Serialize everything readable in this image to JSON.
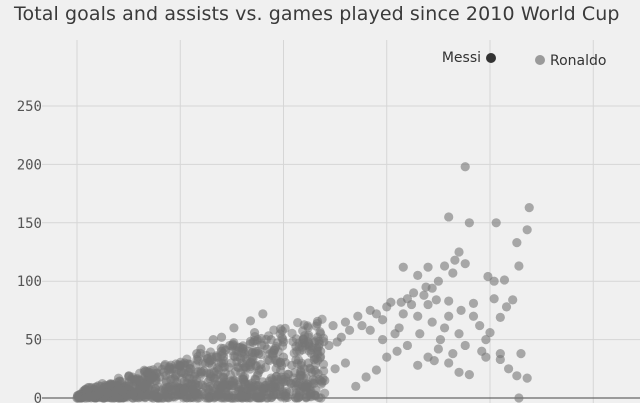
{
  "title": "Total goals and assists vs. games played since 2010 World Cup",
  "colors": {
    "background": "#f0f0f0",
    "grid": "#d6d6d6",
    "axis": "#666666",
    "others": "#777777",
    "messi": "#333333",
    "ronaldo": "#9a9a9a"
  },
  "chart_data": {
    "type": "scatter",
    "title": "Total goals and assists vs. games played since 2010 World Cup",
    "xlabel": "",
    "ylabel": "",
    "xlim": [
      0,
      275
    ],
    "ylim": [
      0,
      260
    ],
    "y_ticks": [
      0,
      50,
      100,
      150,
      200,
      250
    ],
    "x_gridlines": [
      0,
      50,
      100,
      150,
      200,
      250
    ],
    "grid": true,
    "legend": [
      "Messi",
      "Ronaldo"
    ],
    "highlight": [
      {
        "name": "Messi",
        "x": 200,
        "y": 288
      },
      {
        "name": "Ronaldo",
        "x": 225,
        "y": 287
      }
    ],
    "series": [
      {
        "name": "Ronaldo",
        "points": [
          [
            188,
            198
          ],
          [
            203,
            150
          ],
          [
            219,
            163
          ],
          [
            218,
            144
          ],
          [
            213,
            133
          ],
          [
            214,
            113
          ],
          [
            202,
            100
          ],
          [
            207,
            101
          ],
          [
            199,
            104
          ],
          [
            211,
            84
          ],
          [
            208,
            78
          ],
          [
            202,
            85
          ],
          [
            205,
            69
          ],
          [
            190,
            150
          ],
          [
            180,
            155
          ],
          [
            185,
            125
          ],
          [
            183,
            118
          ],
          [
            188,
            115
          ],
          [
            178,
            113
          ],
          [
            182,
            107
          ],
          [
            170,
            112
          ],
          [
            158,
            112
          ],
          [
            165,
            105
          ],
          [
            175,
            100
          ],
          [
            172,
            94
          ],
          [
            168,
            88
          ],
          [
            160,
            85
          ],
          [
            152,
            82
          ],
          [
            162,
            80
          ],
          [
            192,
            70
          ],
          [
            195,
            62
          ],
          [
            200,
            56
          ],
          [
            198,
            50
          ],
          [
            196,
            40
          ],
          [
            205,
            38
          ],
          [
            215,
            38
          ],
          [
            198,
            35
          ],
          [
            205,
            33
          ],
          [
            213,
            19
          ],
          [
            218,
            17
          ],
          [
            214,
            0
          ],
          [
            209,
            25
          ],
          [
            190,
            20
          ],
          [
            185,
            22
          ],
          [
            180,
            30
          ],
          [
            170,
            35
          ],
          [
            175,
            42
          ],
          [
            160,
            45
          ],
          [
            155,
            40
          ],
          [
            150,
            35
          ],
          [
            165,
            28
          ],
          [
            145,
            24
          ],
          [
            140,
            18
          ],
          [
            135,
            10
          ],
          [
            120,
            15
          ],
          [
            125,
            25
          ],
          [
            130,
            30
          ],
          [
            148,
            50
          ],
          [
            156,
            60
          ],
          [
            165,
            70
          ],
          [
            172,
            65
          ],
          [
            178,
            60
          ],
          [
            185,
            55
          ],
          [
            176,
            50
          ],
          [
            188,
            45
          ],
          [
            182,
            38
          ],
          [
            173,
            32
          ],
          [
            180,
            70
          ],
          [
            186,
            75
          ],
          [
            192,
            81
          ],
          [
            180,
            83
          ],
          [
            170,
            80
          ],
          [
            166,
            55
          ],
          [
            158,
            72
          ],
          [
            154,
            55
          ],
          [
            148,
            67
          ],
          [
            145,
            72
          ],
          [
            142,
            58
          ],
          [
            138,
            62
          ],
          [
            132,
            58
          ],
          [
            128,
            52
          ],
          [
            126,
            48
          ],
          [
            122,
            45
          ],
          [
            118,
            40
          ],
          [
            115,
            35
          ],
          [
            112,
            30
          ],
          [
            110,
            25
          ],
          [
            108,
            20
          ],
          [
            104,
            28
          ],
          [
            100,
            35
          ],
          [
            97,
            30
          ],
          [
            95,
            38
          ],
          [
            92,
            42
          ],
          [
            88,
            38
          ],
          [
            85,
            35
          ],
          [
            80,
            30
          ],
          [
            78,
            40
          ],
          [
            74,
            45
          ],
          [
            70,
            40
          ],
          [
            68,
            35
          ],
          [
            64,
            30
          ],
          [
            60,
            42
          ],
          [
            58,
            38
          ],
          [
            55,
            25
          ],
          [
            52,
            30
          ],
          [
            50,
            28
          ],
          [
            48,
            20
          ],
          [
            45,
            25
          ],
          [
            42,
            22
          ],
          [
            40,
            18
          ],
          [
            38,
            15
          ],
          [
            35,
            12
          ],
          [
            32,
            10
          ],
          [
            30,
            15
          ],
          [
            28,
            8
          ],
          [
            25,
            10
          ],
          [
            22,
            6
          ],
          [
            20,
            8
          ],
          [
            18,
            5
          ],
          [
            15,
            4
          ],
          [
            12,
            6
          ],
          [
            10,
            3
          ],
          [
            8,
            2
          ],
          [
            5,
            4
          ],
          [
            3,
            1
          ],
          [
            2,
            0
          ],
          [
            1,
            0
          ],
          [
            0,
            0
          ],
          [
            4,
            0
          ],
          [
            6,
            1
          ],
          [
            84,
            66
          ],
          [
            90,
            72
          ],
          [
            76,
            60
          ],
          [
            70,
            52
          ],
          [
            66,
            50
          ],
          [
            86,
            56
          ],
          [
            94,
            50
          ],
          [
            100,
            48
          ],
          [
            106,
            44
          ],
          [
            112,
            48
          ],
          [
            118,
            55
          ],
          [
            124,
            62
          ],
          [
            130,
            65
          ],
          [
            136,
            70
          ],
          [
            142,
            75
          ],
          [
            150,
            78
          ],
          [
            157,
            82
          ],
          [
            163,
            90
          ],
          [
            169,
            95
          ],
          [
            174,
            84
          ]
        ]
      }
    ]
  }
}
